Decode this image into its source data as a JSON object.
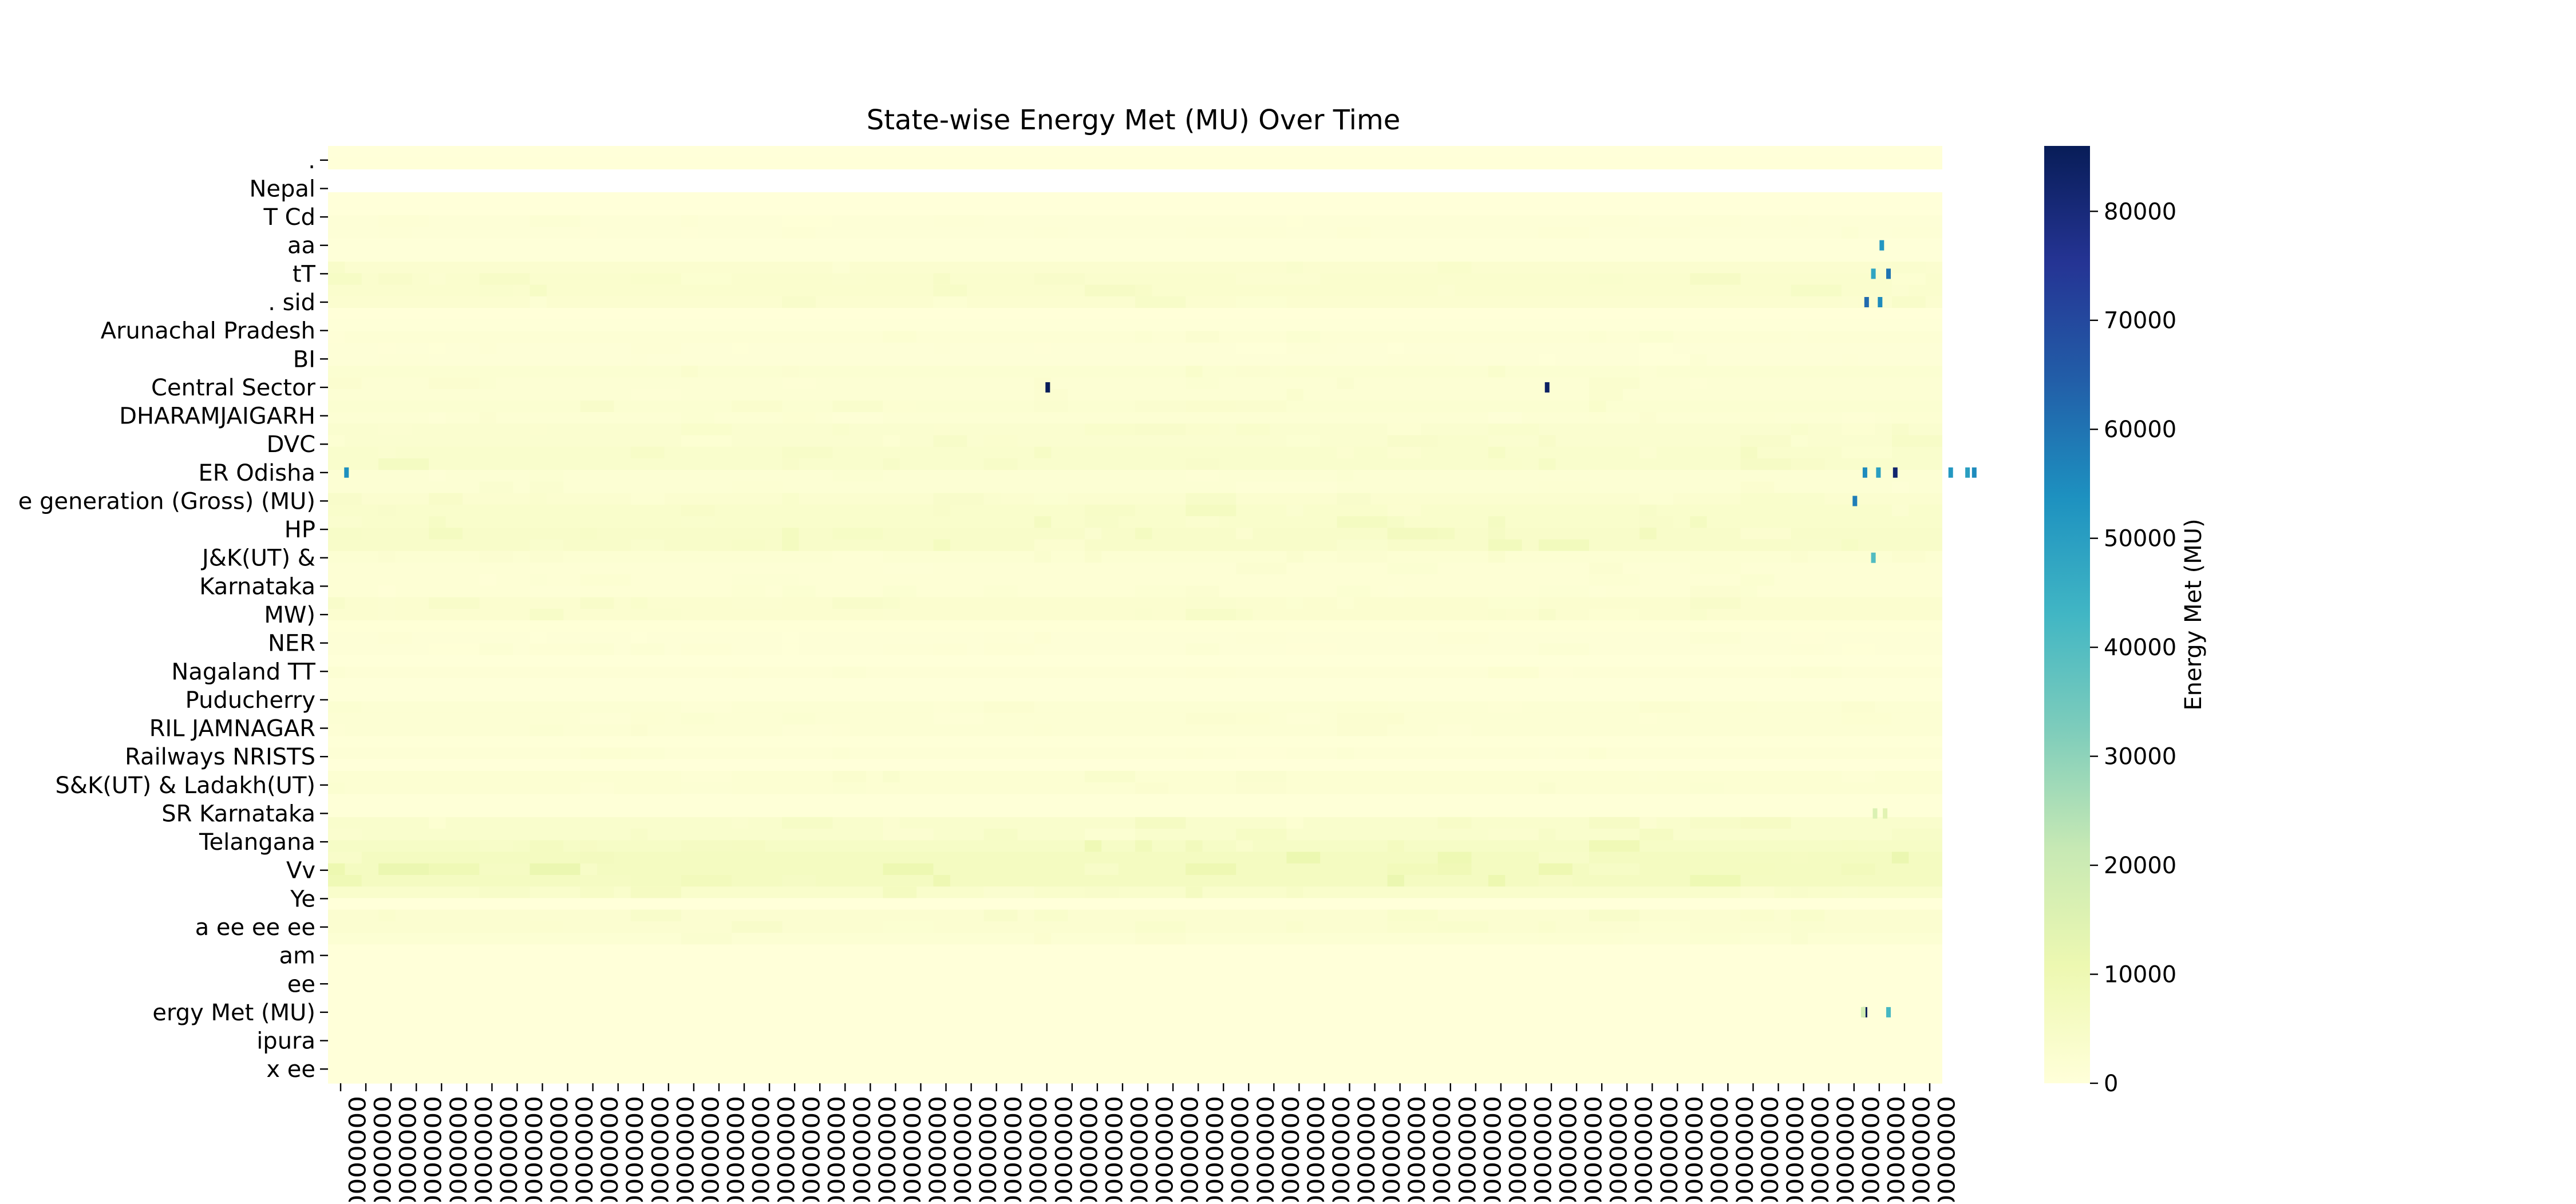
{
  "chart_data": {
    "type": "heatmap",
    "title": "State-wise Energy Met (MU) Over Time",
    "ylabel": "",
    "xlabel": "",
    "y_tick_labels": [
      ".",
      "Nepal",
      "T Cd",
      "aa",
      "tT",
      ". sid",
      "Arunachal Pradesh",
      "BI",
      "Central Sector",
      "DHARAMJAIGARH",
      "DVC",
      "ER Odisha",
      "e generation (Gross) (MU)",
      "HP",
      "J&K(UT) &",
      "Karnataka",
      "MW)",
      "NER",
      "Nagaland TT",
      "Puducherry",
      "RIL JAMNAGAR",
      "Railways NRISTS",
      "S&K(UT) & Ladakh(UT)",
      "SR Karnataka",
      "Telangana",
      "Vv",
      "Ye",
      "a ee ee ee",
      "am",
      "ee",
      "ergy Met (MU)",
      "ipura",
      "x ee"
    ],
    "x_tick_label": "00000000",
    "x_tick_count": 64,
    "colorbar": {
      "label": "Energy Met (MU)",
      "ticks": [
        0,
        10000,
        20000,
        30000,
        40000,
        50000,
        60000,
        70000,
        80000
      ],
      "vmin": 0,
      "vmax": 86000,
      "colors": [
        "#ffffd9",
        "#edf8b1",
        "#c7e9b4",
        "#7fcdbb",
        "#41b6c4",
        "#1d91c0",
        "#225ea8",
        "#253494",
        "#081d58"
      ]
    },
    "band_values": [
      120,
      260,
      6,
      8,
      30,
      40,
      900,
      900,
      320,
      320,
      2600,
      3200,
      3200,
      2600,
      260,
      500,
      1300,
      900,
      900,
      2200,
      1700,
      1700,
      2200,
      1500,
      2800,
      2800,
      3500,
      3500,
      1600,
      1600,
      2600,
      3800,
      3800,
      4200,
      4200,
      1800,
      1400,
      1400,
      1400,
      2600,
      2600,
      700,
      900,
      900,
      300,
      1200,
      400,
      400,
      1500,
      1500,
      1500,
      500,
      1200,
      60,
      1900,
      1900,
      500,
      500,
      3400,
      3400,
      5200,
      6400,
      6400,
      6400,
      3800,
      120,
      2400,
      2400,
      1600,
      20,
      30,
      20,
      60,
      80,
      40,
      15,
      30,
      40,
      120,
      70,
      30
    ],
    "hotspots": [
      {
        "row": ". sid",
        "col": 91.5,
        "value": 62000
      },
      {
        "row": ". sid",
        "col": 92.3,
        "value": 55000
      },
      {
        "row": "tT",
        "col": 92.8,
        "value": 60000
      },
      {
        "row": "tT",
        "col": 91.9,
        "value": 48000
      },
      {
        "row": "aa",
        "col": 92.4,
        "value": 52000
      },
      {
        "row": "Central Sector",
        "col": 42.8,
        "value": 86000
      },
      {
        "row": "Central Sector",
        "col": 72.5,
        "value": 84000
      },
      {
        "row": "ER Odisha",
        "col": 1.1,
        "value": 54000
      },
      {
        "row": "ER Odisha",
        "col": 91.4,
        "value": 55000
      },
      {
        "row": "ER Odisha",
        "col": 92.2,
        "value": 50000
      },
      {
        "row": "ER Odisha",
        "col": 93.2,
        "value": 82000
      },
      {
        "row": "ER Odisha",
        "col": 96.5,
        "value": 52000
      },
      {
        "row": "ER Odisha",
        "col": 97.5,
        "value": 50000
      },
      {
        "row": "ER Odisha",
        "col": 97.9,
        "value": 55000
      },
      {
        "row": "e generation (Gross) (MU)",
        "col": 90.8,
        "value": 58000
      },
      {
        "row": "J&K(UT) &",
        "col": 91.9,
        "value": 40000
      },
      {
        "row": "ergy Met (MU)",
        "col": 91.4,
        "value": 86000
      },
      {
        "row": "ergy Met (MU)",
        "col": 92.8,
        "value": 42000
      },
      {
        "row": "ergy Met (MU)",
        "col": 91.3,
        "value": 18000
      },
      {
        "row": "SR Karnataka",
        "col": 92.0,
        "value": 16000
      },
      {
        "row": "SR Karnataka",
        "col": 92.6,
        "value": 14000
      }
    ]
  }
}
